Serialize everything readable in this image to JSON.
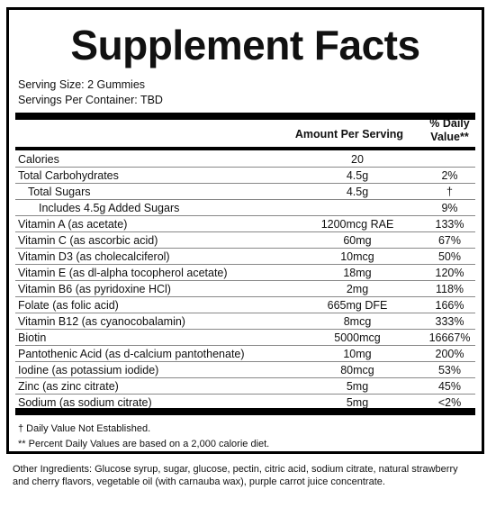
{
  "title": "Supplement Facts",
  "serving_size": "Serving Size: 2 Gummies",
  "servings_per_container": "Servings Per Container: TBD",
  "header": {
    "amount": "Amount Per Serving",
    "dv_line1": "% Daily",
    "dv_line2": "Value**"
  },
  "rows": [
    {
      "name": "Calories",
      "amount": "20",
      "dv": "",
      "indent": 0
    },
    {
      "name": "Total Carbohydrates",
      "amount": "4.5g",
      "dv": "2%",
      "indent": 0
    },
    {
      "name": "Total Sugars",
      "amount": "4.5g",
      "dv": "†",
      "indent": 1
    },
    {
      "name": "Includes 4.5g Added Sugars",
      "amount": "",
      "dv": "9%",
      "indent": 2
    },
    {
      "name": "Vitamin A (as acetate)",
      "amount": "1200mcg RAE",
      "dv": "133%",
      "indent": 0
    },
    {
      "name": "Vitamin C (as ascorbic acid)",
      "amount": "60mg",
      "dv": "67%",
      "indent": 0
    },
    {
      "name": "Vitamin D3 (as cholecalciferol)",
      "amount": "10mcg",
      "dv": "50%",
      "indent": 0
    },
    {
      "name": "Vitamin E (as dl-alpha tocopherol acetate)",
      "amount": "18mg",
      "dv": "120%",
      "indent": 0
    },
    {
      "name": "Vitamin B6 (as pyridoxine HCl)",
      "amount": "2mg",
      "dv": "118%",
      "indent": 0
    },
    {
      "name": "Folate (as folic acid)",
      "amount": "665mg DFE",
      "dv": "166%",
      "indent": 0
    },
    {
      "name": "Vitamin B12 (as cyanocobalamin)",
      "amount": "8mcg",
      "dv": "333%",
      "indent": 0
    },
    {
      "name": "Biotin",
      "amount": "5000mcg",
      "dv": "16667%",
      "indent": 0
    },
    {
      "name": "Pantothenic Acid (as d-calcium pantothenate)",
      "amount": "10mg",
      "dv": "200%",
      "indent": 0
    },
    {
      "name": "Iodine (as potassium iodide)",
      "amount": "80mcg",
      "dv": "53%",
      "indent": 0
    },
    {
      "name": "Zinc (as zinc citrate)",
      "amount": "5mg",
      "dv": "45%",
      "indent": 0
    },
    {
      "name": "Sodium (as sodium citrate)",
      "amount": "5mg",
      "dv": "<2%",
      "indent": 0
    }
  ],
  "footnotes": {
    "dagger": "† Daily Value Not Established.",
    "percent": "** Percent Daily Values are based on a 2,000 calorie diet."
  },
  "other_ingredients": "Other Ingredients: Glucose syrup, sugar, glucose, pectin, citric acid, sodium citrate, natural strawberry and cherry flavors, vegetable oil (with carnauba wax), purple carrot juice concentrate."
}
